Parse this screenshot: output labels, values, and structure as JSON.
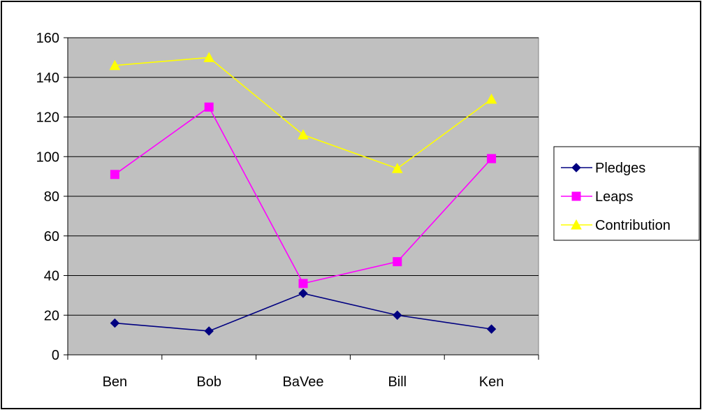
{
  "chart_data": {
    "type": "line",
    "categories": [
      "Ben",
      "Bob",
      "BaVee",
      "Bill",
      "Ken"
    ],
    "ylim": [
      0,
      160
    ],
    "yticks": [
      0,
      20,
      40,
      60,
      80,
      100,
      120,
      140,
      160
    ],
    "grid": true,
    "legend_position": "right",
    "plot_background": "#c0c0c0",
    "series": [
      {
        "name": "Pledges",
        "values": [
          16,
          12,
          31,
          20,
          13
        ],
        "color": "#000080",
        "marker": "diamond"
      },
      {
        "name": "Leaps",
        "values": [
          91,
          125,
          36,
          47,
          99
        ],
        "color": "#ff00ff",
        "marker": "square"
      },
      {
        "name": "Contribution",
        "values": [
          146,
          150,
          111,
          94,
          129
        ],
        "color": "#ffff00",
        "marker": "triangle"
      }
    ]
  }
}
